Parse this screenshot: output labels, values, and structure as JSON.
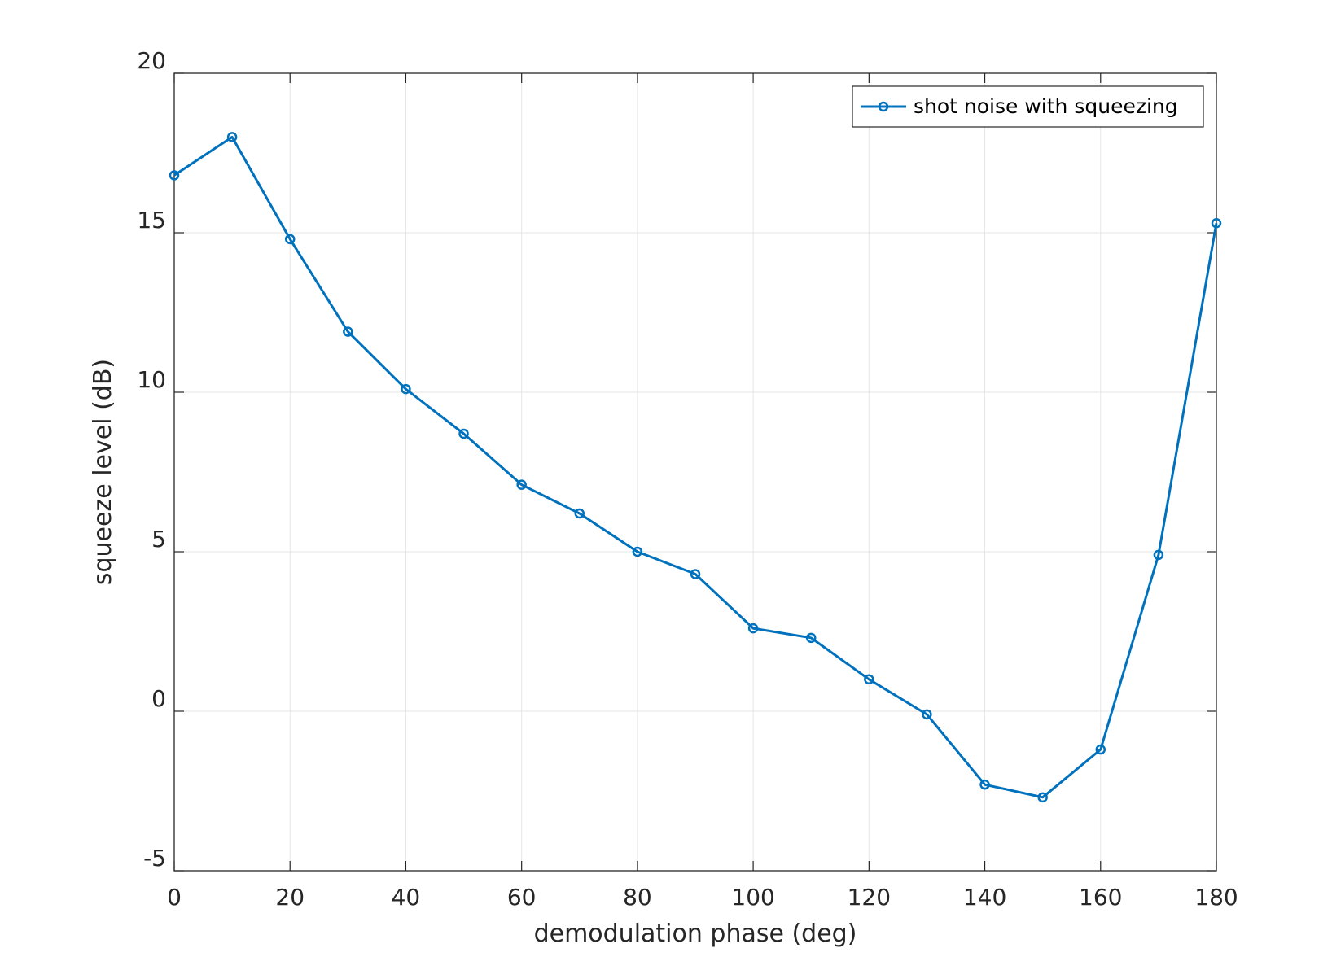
{
  "chart_data": {
    "type": "line",
    "title": "",
    "xlabel": "demodulation phase (deg)",
    "ylabel": "squeeze level (dB)",
    "xlim": [
      0,
      180
    ],
    "ylim": [
      -5,
      20
    ],
    "xticks": [
      0,
      20,
      40,
      60,
      80,
      100,
      120,
      140,
      160,
      180
    ],
    "yticks": [
      -5,
      0,
      5,
      10,
      15,
      20
    ],
    "grid": true,
    "legend_position": "top-right",
    "series": [
      {
        "name": "shot noise with squeezing",
        "color": "#0072BD",
        "marker": "circle",
        "x": [
          0,
          10,
          20,
          30,
          40,
          50,
          60,
          70,
          80,
          90,
          100,
          110,
          120,
          130,
          140,
          150,
          160,
          170,
          180
        ],
        "y": [
          16.8,
          18.0,
          14.8,
          11.9,
          10.1,
          8.7,
          7.1,
          6.2,
          5.0,
          4.3,
          2.6,
          2.3,
          1.0,
          -0.1,
          -2.3,
          -2.7,
          -1.2,
          4.9,
          15.3
        ]
      }
    ]
  }
}
